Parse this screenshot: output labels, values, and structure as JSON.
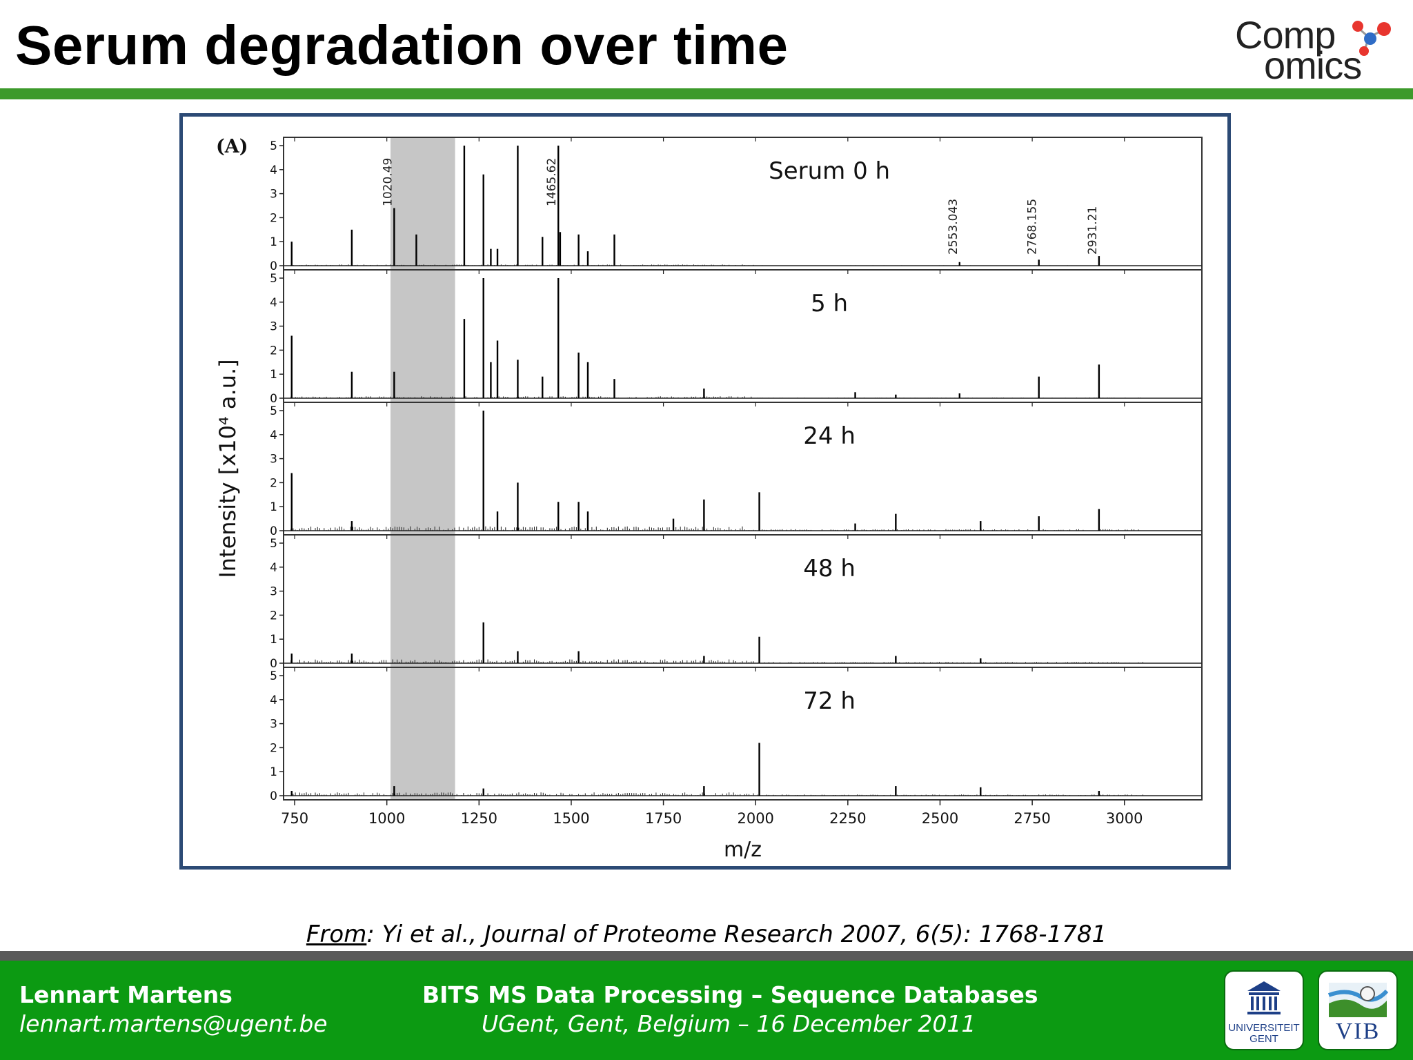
{
  "slide": {
    "title": "Serum degradation over time",
    "logo": {
      "line1": "Comp",
      "line2": "omics"
    }
  },
  "chart_data": {
    "type": "line",
    "panel_label": "(A)",
    "xlabel": "m/z",
    "ylabel": "Intensity [x10⁴ a.u.]",
    "xlim": [
      720,
      3210
    ],
    "ylim": [
      0,
      5
    ],
    "x_ticks": [
      750,
      1000,
      1250,
      1500,
      1750,
      2000,
      2250,
      2500,
      2750,
      3000
    ],
    "y_ticks": [
      0,
      1,
      2,
      3,
      4,
      5
    ],
    "highlight_range": [
      1010,
      1185
    ],
    "panels": [
      {
        "label": "Serum    0 h",
        "peaks": [
          [
            742,
            1.0
          ],
          [
            905,
            1.5
          ],
          [
            1020,
            2.4
          ],
          [
            1080,
            1.3
          ],
          [
            1210,
            5.0
          ],
          [
            1262,
            3.8
          ],
          [
            1282,
            0.7
          ],
          [
            1300,
            0.7
          ],
          [
            1355,
            5.0
          ],
          [
            1422,
            1.2
          ],
          [
            1465,
            5.0
          ],
          [
            1470,
            1.4
          ],
          [
            1520,
            1.3
          ],
          [
            1545,
            0.6
          ],
          [
            1617,
            1.3
          ],
          [
            2553,
            0.15
          ],
          [
            2768,
            0.25
          ],
          [
            2931,
            0.4
          ]
        ],
        "annotations": [
          [
            1020,
            "1020.49"
          ],
          [
            1465,
            "1465.62"
          ],
          [
            2553,
            "2553.043"
          ],
          [
            2768,
            "2768.155"
          ],
          [
            2931,
            "2931.21"
          ]
        ]
      },
      {
        "label": "5 h",
        "peaks": [
          [
            742,
            2.6
          ],
          [
            905,
            1.1
          ],
          [
            1020,
            1.1
          ],
          [
            1210,
            3.3
          ],
          [
            1262,
            5.0
          ],
          [
            1282,
            1.5
          ],
          [
            1300,
            2.4
          ],
          [
            1355,
            1.6
          ],
          [
            1422,
            0.9
          ],
          [
            1465,
            5.0
          ],
          [
            1520,
            1.9
          ],
          [
            1545,
            1.5
          ],
          [
            1617,
            0.8
          ],
          [
            1860,
            0.4
          ],
          [
            2270,
            0.25
          ],
          [
            2380,
            0.15
          ],
          [
            2553,
            0.2
          ],
          [
            2768,
            0.9
          ],
          [
            2931,
            1.4
          ]
        ],
        "annotations": []
      },
      {
        "label": "24 h",
        "peaks": [
          [
            742,
            2.4
          ],
          [
            905,
            0.4
          ],
          [
            1262,
            5.0
          ],
          [
            1300,
            0.8
          ],
          [
            1355,
            2.0
          ],
          [
            1465,
            1.2
          ],
          [
            1520,
            1.2
          ],
          [
            1545,
            0.8
          ],
          [
            1777,
            0.5
          ],
          [
            1860,
            1.3
          ],
          [
            2010,
            1.6
          ],
          [
            2270,
            0.3
          ],
          [
            2380,
            0.7
          ],
          [
            2610,
            0.4
          ],
          [
            2768,
            0.6
          ],
          [
            2931,
            0.9
          ]
        ],
        "annotations": []
      },
      {
        "label": "48 h",
        "peaks": [
          [
            742,
            0.4
          ],
          [
            905,
            0.4
          ],
          [
            1262,
            1.7
          ],
          [
            1355,
            0.5
          ],
          [
            1520,
            0.5
          ],
          [
            1860,
            0.3
          ],
          [
            2010,
            1.1
          ],
          [
            2380,
            0.3
          ],
          [
            2610,
            0.2
          ]
        ],
        "annotations": []
      },
      {
        "label": "72 h",
        "peaks": [
          [
            742,
            0.2
          ],
          [
            1020,
            0.4
          ],
          [
            1262,
            0.3
          ],
          [
            1860,
            0.4
          ],
          [
            2010,
            2.2
          ],
          [
            2380,
            0.4
          ],
          [
            2610,
            0.35
          ],
          [
            2931,
            0.2
          ]
        ],
        "annotations": []
      }
    ]
  },
  "citation": {
    "from": "From",
    "text": ": Yi et al., Journal of Proteome Research 2007, 6(5): 1768-1781"
  },
  "footer": {
    "name": "Lennart Martens",
    "email": "lennart.martens@ugent.be",
    "course": "BITS MS Data Processing – Sequence Databases",
    "place": "UGent, Gent, Belgium – 16 December 2011",
    "ugent_line1": "UNIVERSITEIT",
    "ugent_line2": "GENT",
    "vib_text": "VIB"
  },
  "colors": {
    "green": "#0c9a12",
    "accent_green": "#3d9a2b",
    "frame_blue": "#2c4a75",
    "highlight_grey": "#c6c6c6",
    "logo_red": "#e8352e",
    "logo_blue": "#2f6cc6"
  }
}
